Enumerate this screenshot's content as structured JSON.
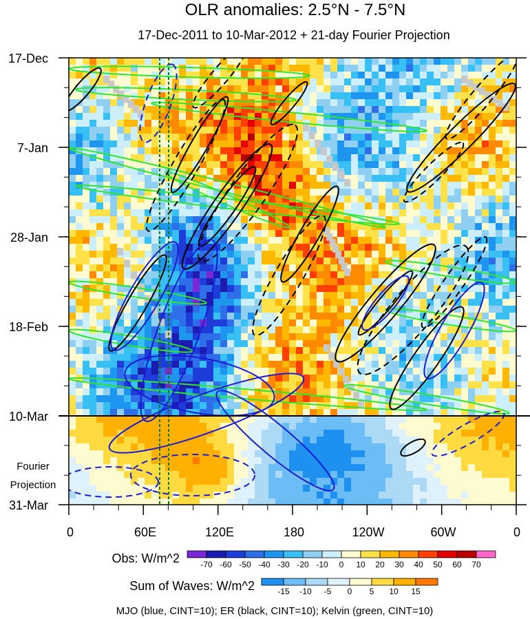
{
  "chart_data": {
    "type": "heatmap",
    "title": "OLR anomalies: 2.5°N - 7.5°N",
    "subtitle": "17-Dec-2011 to 10-Mar-2012 + 21-day Fourier Projection",
    "y_ticks": [
      "17-Dec",
      "7-Jan",
      "28-Jan",
      "18-Feb",
      "10-Mar",
      "31-Mar"
    ],
    "x_ticks": [
      "0",
      "60E",
      "120E",
      "180",
      "120W",
      "60W",
      "0"
    ],
    "projection_label": [
      "Fourier",
      "Projection"
    ],
    "obs_label": "Obs: W/m^2",
    "obs_levels": [
      "-70",
      "-60",
      "-50",
      "-40",
      "-30",
      "-20",
      "-10",
      "0",
      "10",
      "20",
      "30",
      "40",
      "50",
      "60",
      "70"
    ],
    "obs_colors": [
      "#7a28d6",
      "#1c1cb0",
      "#1e3cd8",
      "#2e6ee8",
      "#1e96f0",
      "#38c0f5",
      "#8fcff2",
      "#cdeffb",
      "#fffbd0",
      "#ffe24a",
      "#ffb800",
      "#ff8a00",
      "#ff4000",
      "#e20000",
      "#b80000",
      "#ff66c8"
    ],
    "waves_label": "Sum of Waves: W/m^2",
    "waves_levels": [
      "-15",
      "-10",
      "-5",
      "0",
      "5",
      "10",
      "15"
    ],
    "waves_colors": [
      "#1e90f0",
      "#6cbcf5",
      "#acd9f6",
      "#dff2fc",
      "#fffbd0",
      "#ffda40",
      "#ffb000",
      "#ff7800"
    ],
    "footer": "MJO (blue, CINT=10); ER (black, CINT=10); Kelvin (green, CINT=10)",
    "colors": {
      "mjo": "#1a1ad6",
      "er": "#000000",
      "kelvin": "#2ee62e",
      "ref_line": "#0a7a0a",
      "missing": "#c8c8c8"
    }
  }
}
